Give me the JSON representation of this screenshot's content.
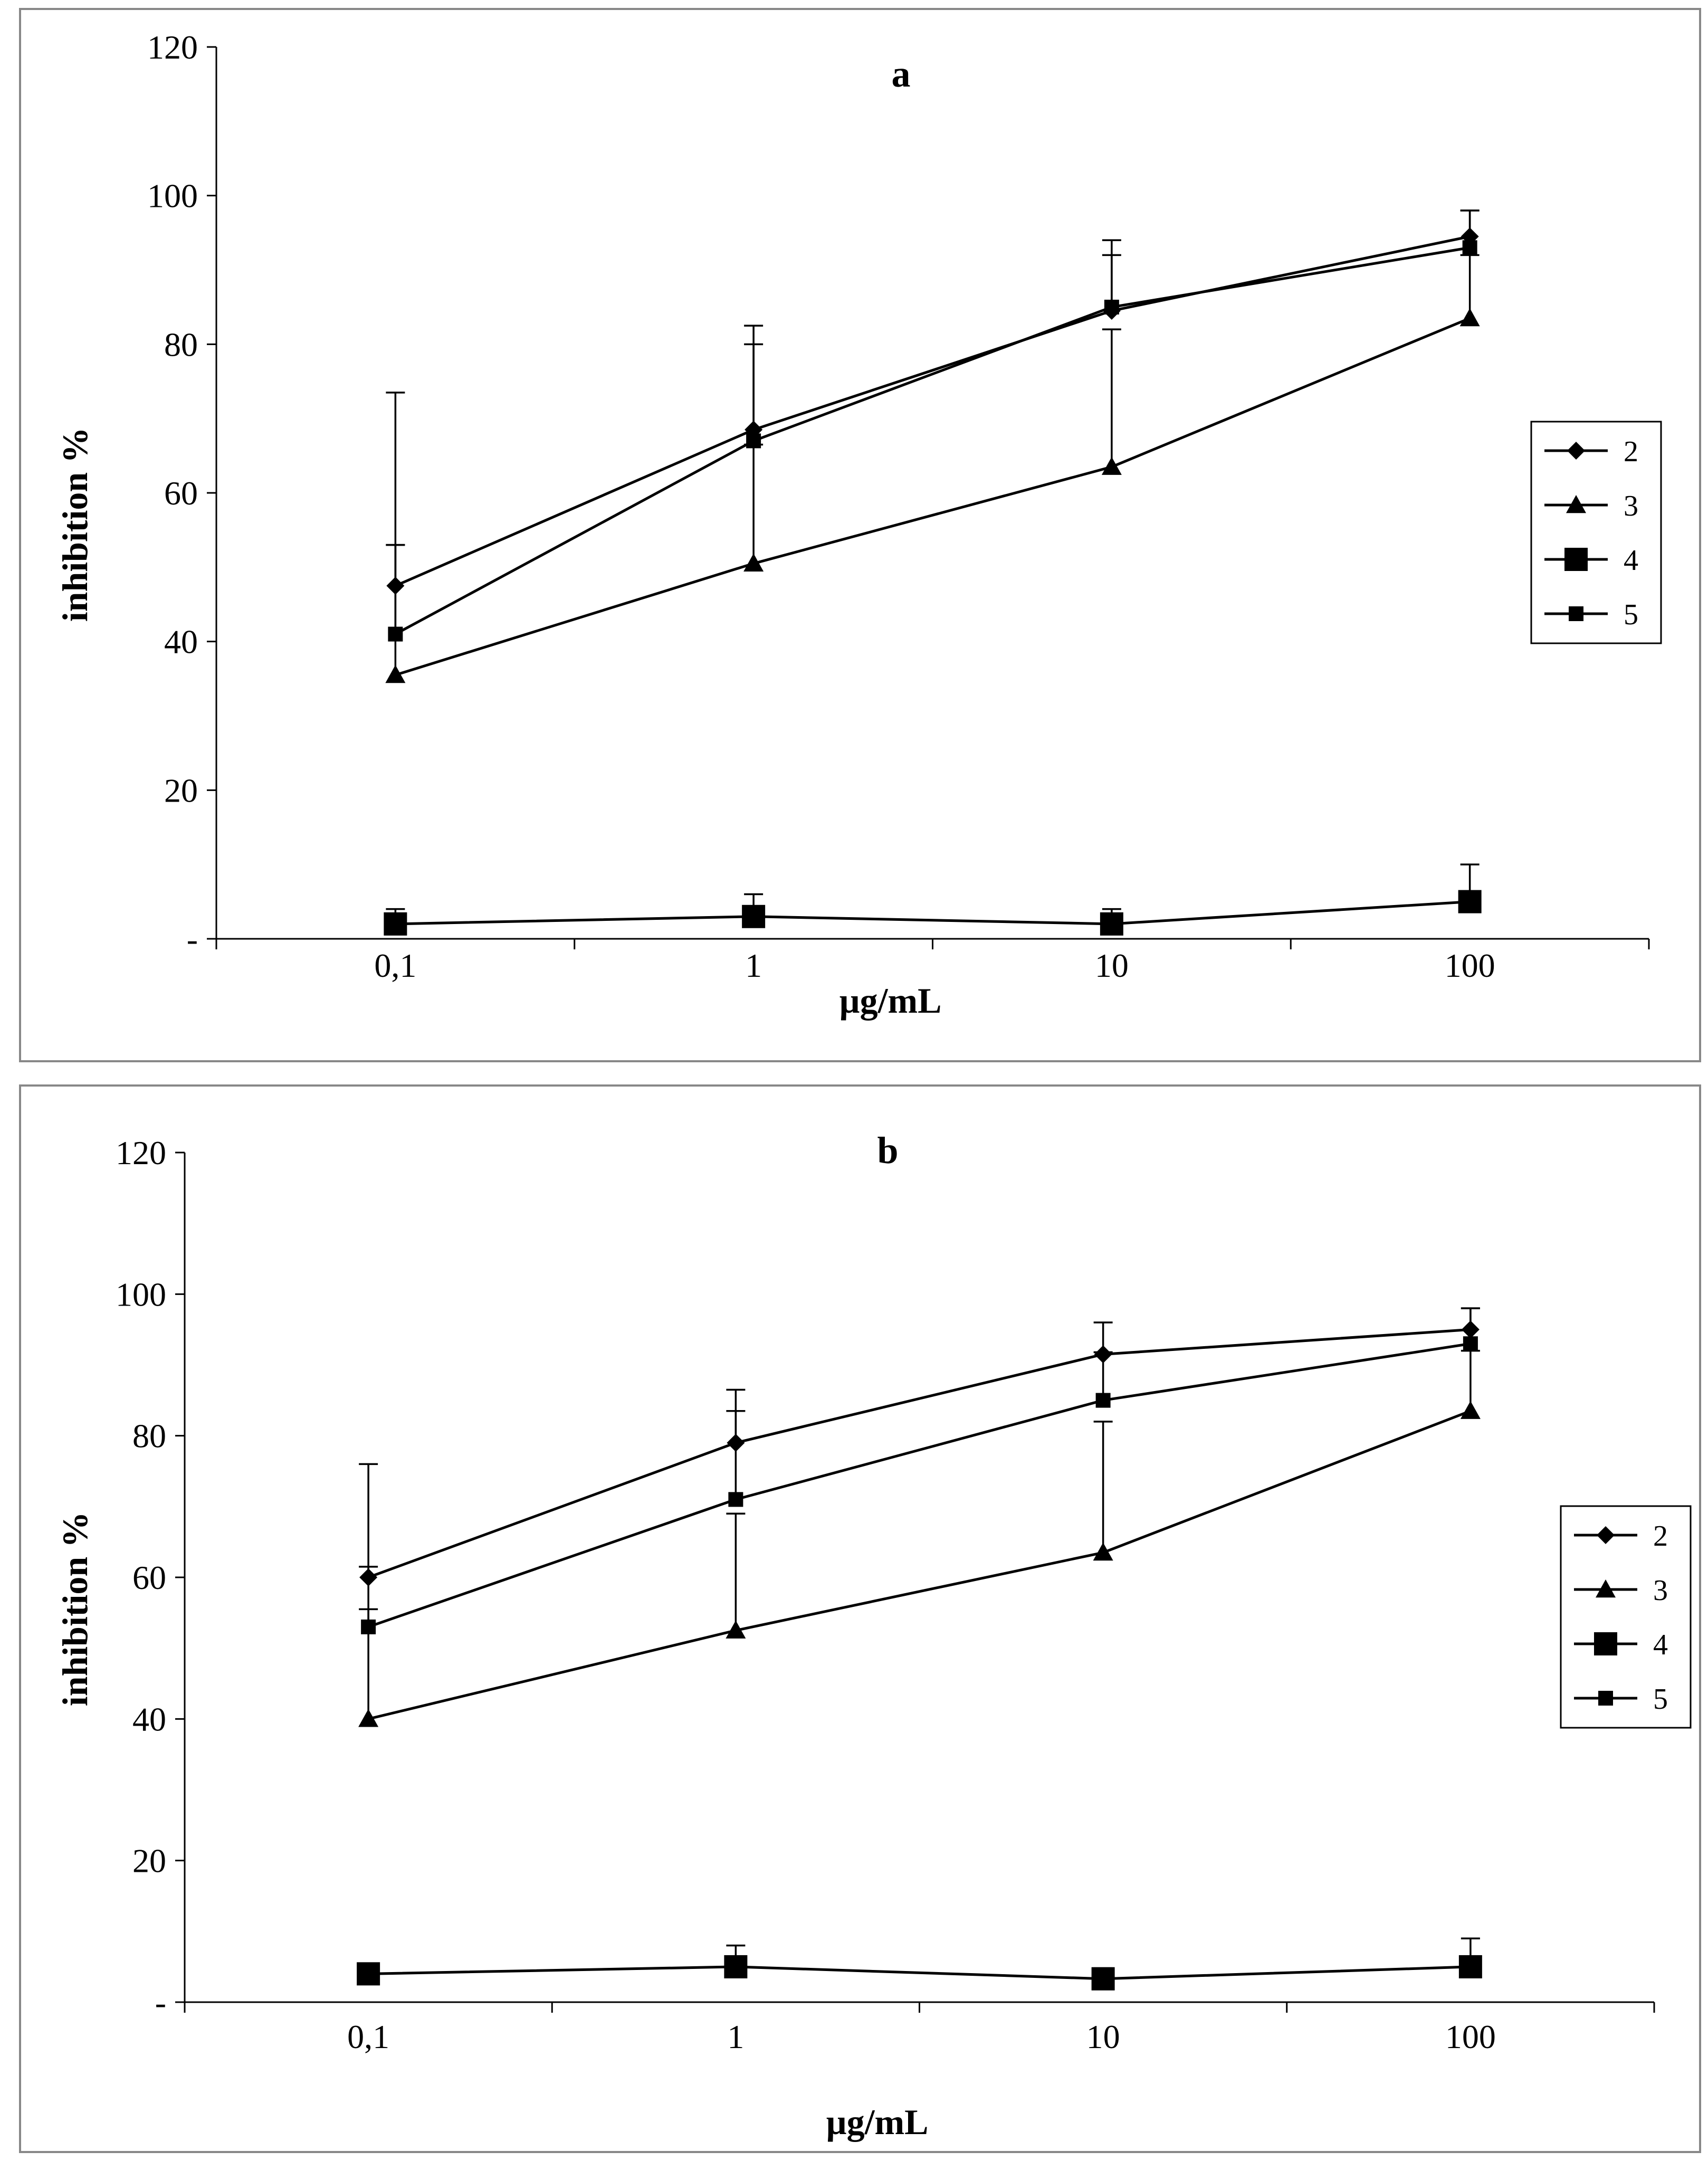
{
  "chart_data": [
    {
      "type": "line",
      "title": "a",
      "xlabel": "µg/mL",
      "ylabel": "inhibition %",
      "categories": [
        "0,1",
        "1",
        "10",
        "100"
      ],
      "ylim": [
        0,
        120
      ],
      "yticks": [
        0,
        20,
        40,
        60,
        80,
        100,
        120
      ],
      "ytick_labels": [
        "-",
        "20",
        "40",
        "60",
        "80",
        "100",
        "120"
      ],
      "grid": false,
      "legend_position": "right",
      "series": [
        {
          "name": "2",
          "marker": "diamond",
          "values": [
            47.5,
            68.5,
            84.5,
            94.5
          ],
          "errors": [
            26,
            14,
            9.5,
            3.5
          ]
        },
        {
          "name": "3",
          "marker": "triangle",
          "values": [
            35.5,
            50.5,
            63.5,
            83.5
          ],
          "errors": [
            17.5,
            16,
            18.5,
            8.5
          ]
        },
        {
          "name": "4",
          "marker": "square-large",
          "values": [
            2,
            3,
            2,
            5
          ],
          "errors": [
            2,
            3,
            2,
            5
          ]
        },
        {
          "name": "5",
          "marker": "square",
          "values": [
            41,
            67,
            85,
            93
          ],
          "errors": [
            12,
            13,
            7,
            5
          ]
        }
      ]
    },
    {
      "type": "line",
      "title": "b",
      "xlabel": "µg/mL",
      "ylabel": "inhibition %",
      "categories": [
        "0,1",
        "1",
        "10",
        "100"
      ],
      "ylim": [
        0,
        120
      ],
      "yticks": [
        0,
        20,
        40,
        60,
        80,
        100,
        120
      ],
      "ytick_labels": [
        "-",
        "20",
        "40",
        "60",
        "80",
        "100",
        "120"
      ],
      "grid": false,
      "legend_position": "right",
      "series": [
        {
          "name": "2",
          "marker": "diamond",
          "values": [
            60,
            79,
            91.5,
            95
          ],
          "errors": [
            16,
            7.5,
            4.5,
            3
          ]
        },
        {
          "name": "3",
          "marker": "triangle",
          "values": [
            40,
            52.5,
            63.5,
            83.5
          ],
          "errors": [
            15.5,
            16.5,
            18.5,
            8.5
          ]
        },
        {
          "name": "4",
          "marker": "square-large",
          "values": [
            4,
            5,
            3.3,
            5
          ],
          "errors": [
            0.5,
            3,
            1.5,
            4
          ]
        },
        {
          "name": "5",
          "marker": "square",
          "values": [
            53,
            71,
            85,
            93
          ],
          "errors": [
            8.5,
            12.5,
            6.8,
            5
          ]
        }
      ]
    }
  ]
}
